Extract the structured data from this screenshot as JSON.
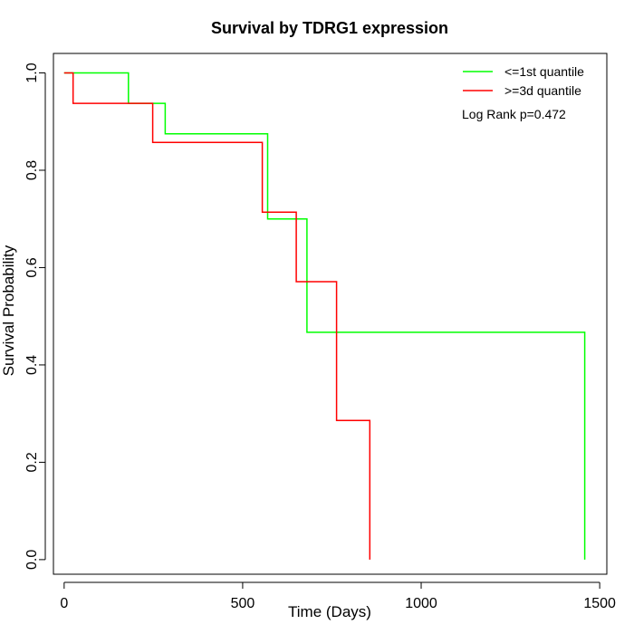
{
  "chart_data": {
    "type": "line",
    "subtype": "kaplan-meier step",
    "title": "Survival by TDRG1 expression",
    "xlabel": "Time (Days)",
    "ylabel": "Survival Probability",
    "xlim": [
      -30,
      1520
    ],
    "ylim": [
      -0.03,
      1.04
    ],
    "xticks": [
      0,
      500,
      1000,
      1500
    ],
    "yticks": [
      0.0,
      0.2,
      0.4,
      0.6,
      0.8,
      1.0
    ],
    "xtick_labels": [
      "0",
      "500",
      "1000",
      "1500"
    ],
    "ytick_labels": [
      "0.0",
      "0.2",
      "0.4",
      "0.6",
      "0.8",
      "1.0"
    ],
    "grid": false,
    "legend_position": "top-right",
    "annotation": "Log Rank p=0.472",
    "series": [
      {
        "name": "<=1st quantile",
        "color": "#00ff00",
        "x": [
          0,
          180,
          180,
          283,
          283,
          570,
          570,
          680,
          680,
          1458,
          1458
        ],
        "y": [
          1.0,
          1.0,
          0.9375,
          0.9375,
          0.875,
          0.875,
          0.7,
          0.7,
          0.467,
          0.467,
          0.0
        ]
      },
      {
        "name": ">=3d quantile",
        "color": "#ff0000",
        "x": [
          0,
          25,
          25,
          248,
          248,
          555,
          555,
          650,
          650,
          763,
          763,
          856,
          856
        ],
        "y": [
          1.0,
          1.0,
          0.9375,
          0.9375,
          0.857,
          0.857,
          0.714,
          0.714,
          0.571,
          0.571,
          0.286,
          0.286,
          0.0
        ]
      }
    ]
  }
}
